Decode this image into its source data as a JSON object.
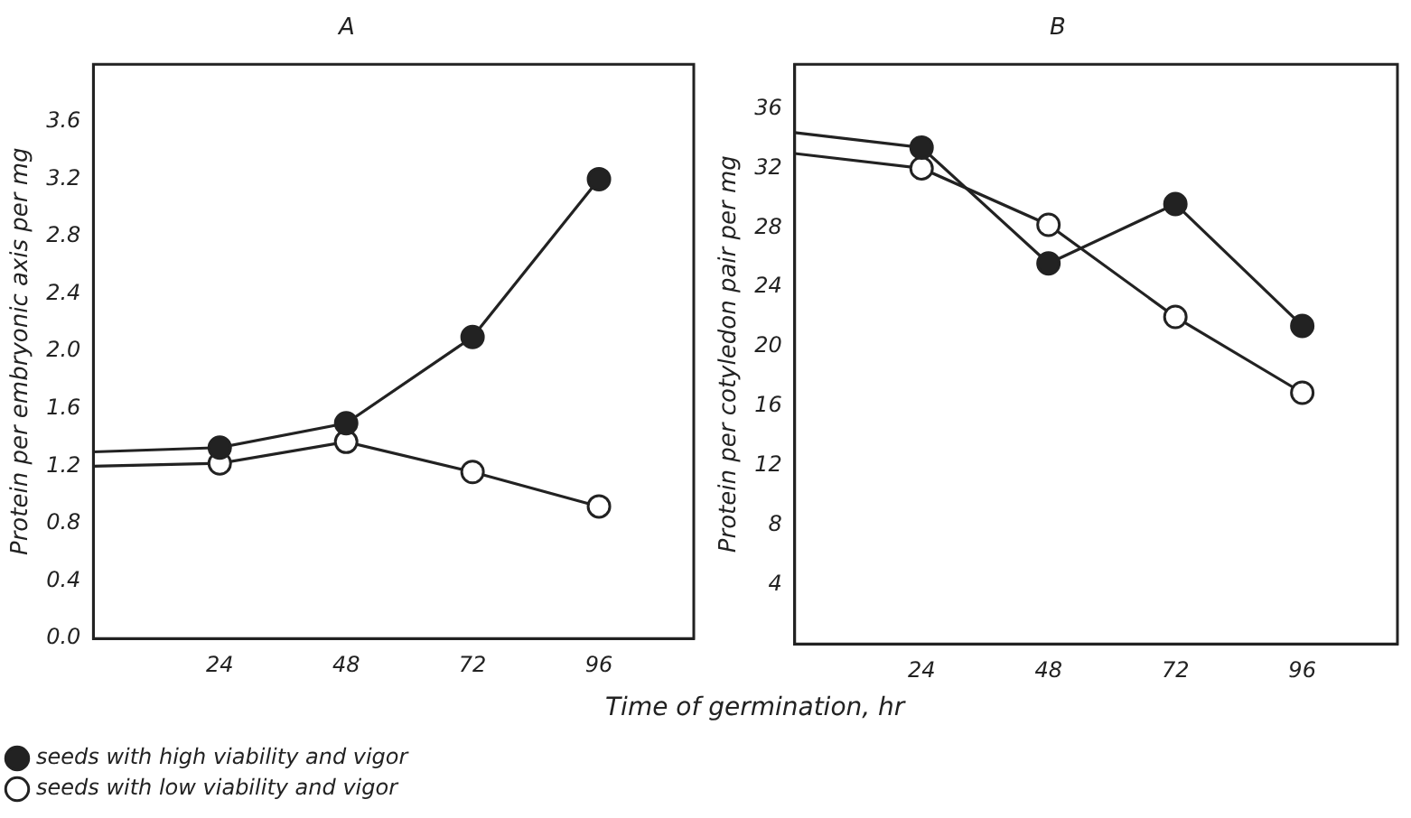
{
  "chart_data": [
    {
      "type": "line",
      "title": "A",
      "ylabel": "Protein per embryonic axis per mg",
      "xlabel": "Time of germination, hr",
      "x": [
        0,
        24,
        48,
        72,
        96
      ],
      "xlim": [
        0,
        114
      ],
      "xticks": [
        24,
        48,
        72,
        96
      ],
      "ylim": [
        0,
        4.0
      ],
      "yticks": [
        {
          "value": 0,
          "label": "0.0"
        },
        {
          "value": 0.4,
          "label": "0.4"
        },
        {
          "value": 0.8,
          "label": "0.8"
        },
        {
          "value": 1.2,
          "label": "1.2"
        },
        {
          "value": 1.6,
          "label": "1.6"
        },
        {
          "value": 2.0,
          "label": "2.0"
        },
        {
          "value": 2.4,
          "label": "2.4"
        },
        {
          "value": 2.8,
          "label": "2.8"
        },
        {
          "value": 3.2,
          "label": "3.2"
        },
        {
          "value": 3.6,
          "label": "3.6"
        }
      ],
      "marker": "circle",
      "grid": false,
      "legend": "bottom",
      "series": [
        {
          "name": "seeds with high viability and vigor",
          "color": "#222222",
          "values": [
            1.3,
            1.33,
            1.5,
            2.1,
            3.2
          ]
        },
        {
          "name": "seeds with low viability and vigor",
          "color": "#ffffff",
          "values": [
            1.2,
            1.22,
            1.37,
            1.16,
            0.92
          ]
        }
      ]
    },
    {
      "type": "line",
      "title": "B",
      "ylabel": "Protein per cotyledon pair per mg",
      "x": [
        0,
        24,
        48,
        72,
        96
      ],
      "xlim": [
        0,
        114
      ],
      "xticks": [
        24,
        48,
        72,
        96
      ],
      "ylim": [
        0,
        39
      ],
      "yticks": [
        4,
        8,
        12,
        16,
        20,
        24,
        28,
        32,
        36
      ],
      "marker": "circle",
      "grid": false,
      "series": [
        {
          "color": "#222222",
          "values": [
            34.4,
            33.4,
            25.6,
            29.6,
            21.4
          ]
        },
        {
          "color": "#ffffff",
          "values": [
            33.0,
            32.0,
            28.2,
            22.0,
            16.9
          ]
        }
      ]
    }
  ]
}
